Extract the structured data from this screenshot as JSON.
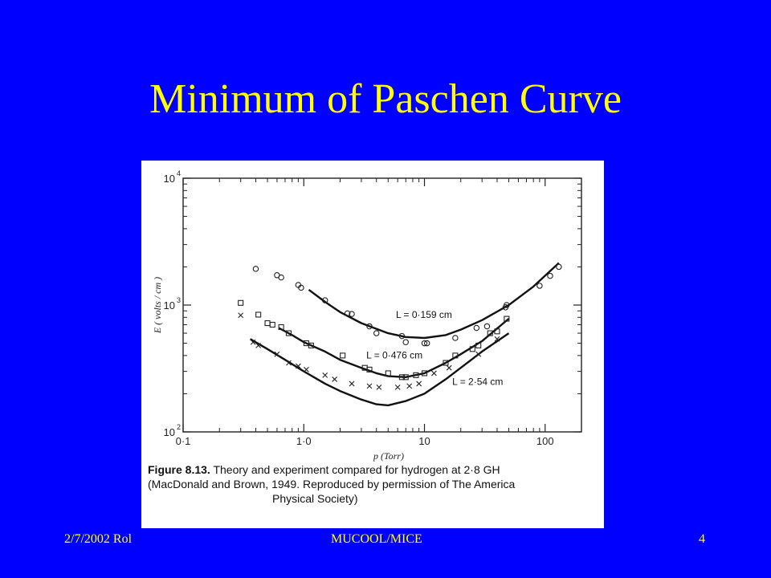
{
  "slide": {
    "title": "Minimum of Paschen Curve",
    "footer_left": "2/7/2002 Rol",
    "footer_center": "MUCOOL/MICE",
    "footer_right": "4"
  },
  "colors": {
    "background": "#0000FF",
    "title": "#FFFF00",
    "panel": "#FFFFFF"
  },
  "figure": {
    "caption_label": "Figure 8.13.",
    "caption_line1": "Theory and experiment compared for hydrogen at 2·8 GH",
    "caption_line2": "(MacDonald and Brown, 1949. Reproduced by permission of The America",
    "caption_line3": "Physical Society)"
  },
  "chart_data": {
    "type": "scatter",
    "xlabel": "p   (Torr)",
    "ylabel": "E  ( volts / cm )",
    "xscale": "log",
    "yscale": "log",
    "xlim": [
      0.1,
      200
    ],
    "ylim": [
      100,
      10000
    ],
    "x_ticks": [
      {
        "value": 0.1,
        "label": "0·1"
      },
      {
        "value": 1,
        "label": "1·0"
      },
      {
        "value": 10,
        "label": "10"
      },
      {
        "value": 100,
        "label": "100"
      }
    ],
    "y_ticks": [
      {
        "value": 100,
        "label": "10",
        "exp": "2"
      },
      {
        "value": 1000,
        "label": "10",
        "exp": "3"
      },
      {
        "value": 10000,
        "label": "10",
        "exp": "4"
      }
    ],
    "series": [
      {
        "name": "L = 0·159 cm",
        "marker": "circle",
        "curve": [
          [
            1.1,
            1320
          ],
          [
            1.5,
            1060
          ],
          [
            2,
            880
          ],
          [
            3,
            720
          ],
          [
            4,
            650
          ],
          [
            5,
            600
          ],
          [
            7,
            560
          ],
          [
            10,
            550
          ],
          [
            15,
            580
          ],
          [
            20,
            640
          ],
          [
            30,
            760
          ],
          [
            50,
            1000
          ],
          [
            80,
            1400
          ],
          [
            130,
            2150
          ]
        ],
        "points": [
          [
            0.4,
            1930
          ],
          [
            0.6,
            1720
          ],
          [
            0.65,
            1650
          ],
          [
            0.9,
            1440
          ],
          [
            0.95,
            1370
          ],
          [
            1.5,
            1090
          ],
          [
            2.3,
            860
          ],
          [
            2.5,
            850
          ],
          [
            3.5,
            680
          ],
          [
            4,
            600
          ],
          [
            6.5,
            570
          ],
          [
            7,
            510
          ],
          [
            10,
            500
          ],
          [
            10.5,
            500
          ],
          [
            18,
            550
          ],
          [
            27,
            660
          ],
          [
            33,
            680
          ],
          [
            47,
            960
          ],
          [
            48,
            1000
          ],
          [
            90,
            1420
          ],
          [
            110,
            1700
          ],
          [
            130,
            2000
          ]
        ],
        "label_at": [
          5.8,
          790
        ]
      },
      {
        "name": "L = 0·476 cm",
        "marker": "square",
        "curve": [
          [
            0.62,
            660
          ],
          [
            0.8,
            580
          ],
          [
            1,
            510
          ],
          [
            1.5,
            430
          ],
          [
            2,
            370
          ],
          [
            3,
            320
          ],
          [
            4,
            290
          ],
          [
            5,
            275
          ],
          [
            7,
            270
          ],
          [
            10,
            290
          ],
          [
            15,
            350
          ],
          [
            20,
            410
          ],
          [
            30,
            520
          ],
          [
            50,
            780
          ]
        ],
        "points": [
          [
            0.3,
            1040
          ],
          [
            0.42,
            840
          ],
          [
            0.5,
            720
          ],
          [
            0.55,
            700
          ],
          [
            0.65,
            670
          ],
          [
            0.75,
            600
          ],
          [
            1.05,
            500
          ],
          [
            1.15,
            480
          ],
          [
            2.1,
            400
          ],
          [
            3.2,
            320
          ],
          [
            3.5,
            310
          ],
          [
            5,
            290
          ],
          [
            6.5,
            270
          ],
          [
            7,
            270
          ],
          [
            8.5,
            280
          ],
          [
            10,
            290
          ],
          [
            15,
            350
          ],
          [
            18,
            400
          ],
          [
            25,
            450
          ],
          [
            28,
            480
          ],
          [
            35,
            600
          ],
          [
            40,
            620
          ],
          [
            48,
            780
          ]
        ],
        "label_at": [
          3.3,
          380
        ]
      },
      {
        "name": "L = 2·54 cm",
        "marker": "x",
        "curve": [
          [
            0.36,
            540
          ],
          [
            0.5,
            450
          ],
          [
            0.7,
            370
          ],
          [
            1,
            300
          ],
          [
            1.5,
            240
          ],
          [
            2,
            210
          ],
          [
            3,
            180
          ],
          [
            4,
            165
          ],
          [
            5,
            162
          ],
          [
            7,
            175
          ],
          [
            10,
            200
          ],
          [
            15,
            260
          ],
          [
            20,
            320
          ],
          [
            30,
            430
          ],
          [
            50,
            600
          ]
        ],
        "points": [
          [
            0.3,
            830
          ],
          [
            0.38,
            510
          ],
          [
            0.42,
            480
          ],
          [
            0.6,
            410
          ],
          [
            0.75,
            350
          ],
          [
            0.9,
            330
          ],
          [
            1.05,
            310
          ],
          [
            1.5,
            280
          ],
          [
            1.8,
            260
          ],
          [
            2.5,
            240
          ],
          [
            3.5,
            230
          ],
          [
            4.2,
            225
          ],
          [
            6,
            225
          ],
          [
            7.5,
            230
          ],
          [
            9,
            240
          ],
          [
            12,
            290
          ],
          [
            16,
            320
          ],
          [
            28,
            410
          ],
          [
            40,
            540
          ]
        ],
        "label_at": [
          17,
          235
        ]
      }
    ]
  }
}
